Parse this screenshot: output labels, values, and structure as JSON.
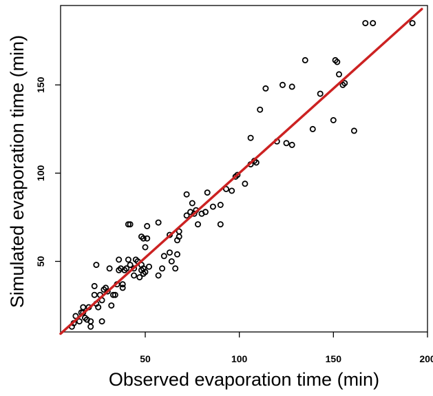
{
  "chart_data": {
    "type": "scatter",
    "xlabel": "Observed evaporation time (min)",
    "ylabel": "Simulated evaporation time (min)",
    "xlim": [
      5,
      200
    ],
    "ylim": [
      10,
      195
    ],
    "xticks": [
      50,
      100,
      150,
      200
    ],
    "yticks": [
      50,
      100,
      150
    ],
    "grid": false,
    "legend": "none",
    "colors": {
      "points": "#000000",
      "fit_line": "#cc2222"
    },
    "fit_line": {
      "x": [
        5,
        197
      ],
      "y": [
        9,
        193
      ]
    },
    "series": [
      {
        "x": [
          11,
          12,
          13,
          15,
          16,
          17,
          17,
          18,
          19,
          20,
          21,
          21,
          23,
          23,
          24,
          24,
          25,
          26,
          27,
          27,
          28,
          29,
          30,
          31,
          32,
          33,
          34,
          35,
          36,
          36,
          37,
          38,
          38,
          39,
          40,
          41,
          41,
          42,
          42,
          44,
          44,
          45,
          46,
          47,
          48,
          48,
          48,
          49,
          49,
          49,
          50,
          50,
          51,
          51,
          52,
          57,
          57,
          59,
          60,
          63,
          63,
          64,
          66,
          67,
          67,
          68,
          68,
          72,
          72,
          74,
          75,
          76,
          77,
          78,
          80,
          82,
          83,
          86,
          90,
          90,
          93,
          96,
          98,
          99,
          103,
          106,
          106,
          108,
          109,
          111,
          114,
          120,
          123,
          125,
          128,
          128,
          135,
          139,
          143,
          150,
          151,
          152,
          153,
          155,
          156,
          161,
          167,
          171,
          192
        ],
        "y": [
          13,
          15,
          19,
          16,
          21,
          21,
          24,
          18,
          17,
          24,
          13,
          16,
          31,
          36,
          48,
          26,
          24,
          31,
          28,
          16,
          34,
          35,
          33,
          46,
          25,
          31,
          31,
          37,
          45,
          51,
          46,
          37,
          35,
          45,
          46,
          51,
          71,
          71,
          48,
          42,
          46,
          51,
          50,
          41,
          48,
          45,
          64,
          63,
          43,
          46,
          44,
          58,
          70,
          63,
          47,
          42,
          72,
          46,
          53,
          65,
          55,
          50,
          46,
          62,
          54,
          67,
          64,
          76,
          88,
          78,
          83,
          77,
          79,
          71,
          77,
          78,
          89,
          81,
          82,
          71,
          91,
          90,
          98,
          99,
          94,
          120,
          105,
          107,
          106,
          136,
          148,
          118,
          150,
          117,
          116,
          149,
          164,
          125,
          145,
          130,
          164,
          163,
          156,
          150,
          151,
          124,
          185,
          185,
          185
        ]
      }
    ]
  }
}
